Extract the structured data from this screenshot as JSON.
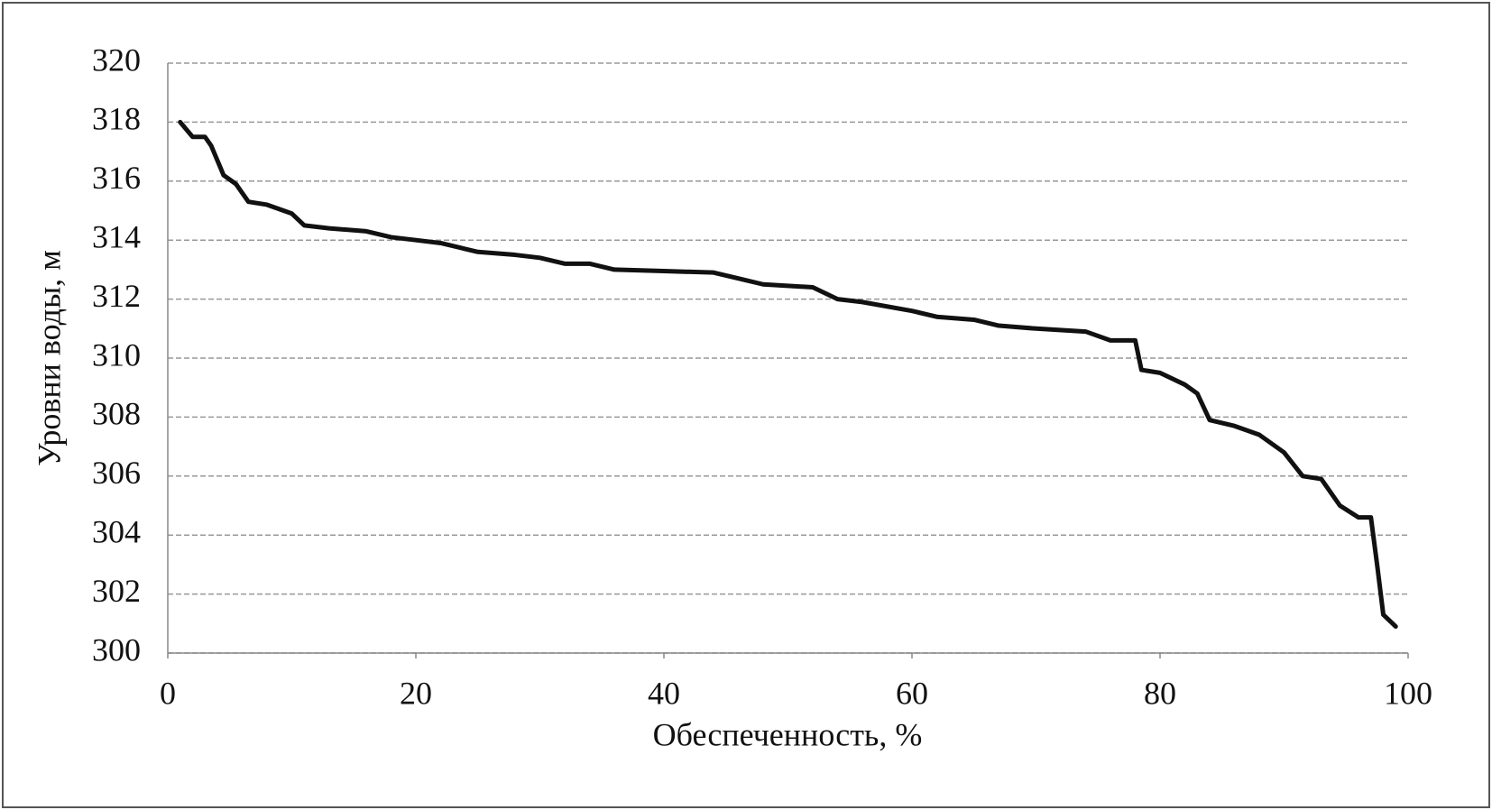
{
  "chart_data": {
    "type": "line",
    "x_label": "Обеспеченность, %",
    "y_label": "Уровни воды, м",
    "xlim": [
      0,
      100
    ],
    "xticks": [
      0,
      20,
      40,
      60,
      80,
      100
    ],
    "ylim": [
      300,
      320
    ],
    "yticks": [
      300,
      302,
      304,
      306,
      308,
      310,
      312,
      314,
      316,
      318,
      320
    ],
    "grid": true,
    "color": "#111111",
    "x": [
      1,
      2,
      3,
      3.5,
      4.5,
      5.5,
      6.5,
      8,
      10,
      11,
      13,
      16,
      18,
      20,
      22,
      24,
      25,
      28,
      30,
      32,
      34,
      36,
      40,
      44,
      46,
      48,
      52,
      54,
      56,
      60,
      62,
      65,
      67,
      70,
      74,
      76,
      78,
      78.5,
      80,
      82,
      83,
      84,
      86,
      88,
      90,
      91.5,
      93,
      94.5,
      96,
      97,
      97.5,
      98,
      99
    ],
    "values": [
      318,
      317.5,
      317.5,
      317.2,
      316.2,
      315.9,
      315.3,
      315.2,
      314.9,
      314.5,
      314.4,
      314.3,
      314.1,
      314.0,
      313.9,
      313.7,
      313.6,
      313.5,
      313.4,
      313.2,
      313.2,
      313.0,
      312.95,
      312.9,
      312.7,
      312.5,
      312.4,
      312.0,
      311.9,
      311.6,
      311.4,
      311.3,
      311.1,
      311.0,
      310.9,
      310.6,
      310.6,
      309.6,
      309.5,
      309.1,
      308.8,
      307.9,
      307.7,
      307.4,
      306.8,
      306.0,
      305.9,
      305.0,
      304.6,
      304.6,
      303.0,
      301.3,
      300.9
    ]
  }
}
